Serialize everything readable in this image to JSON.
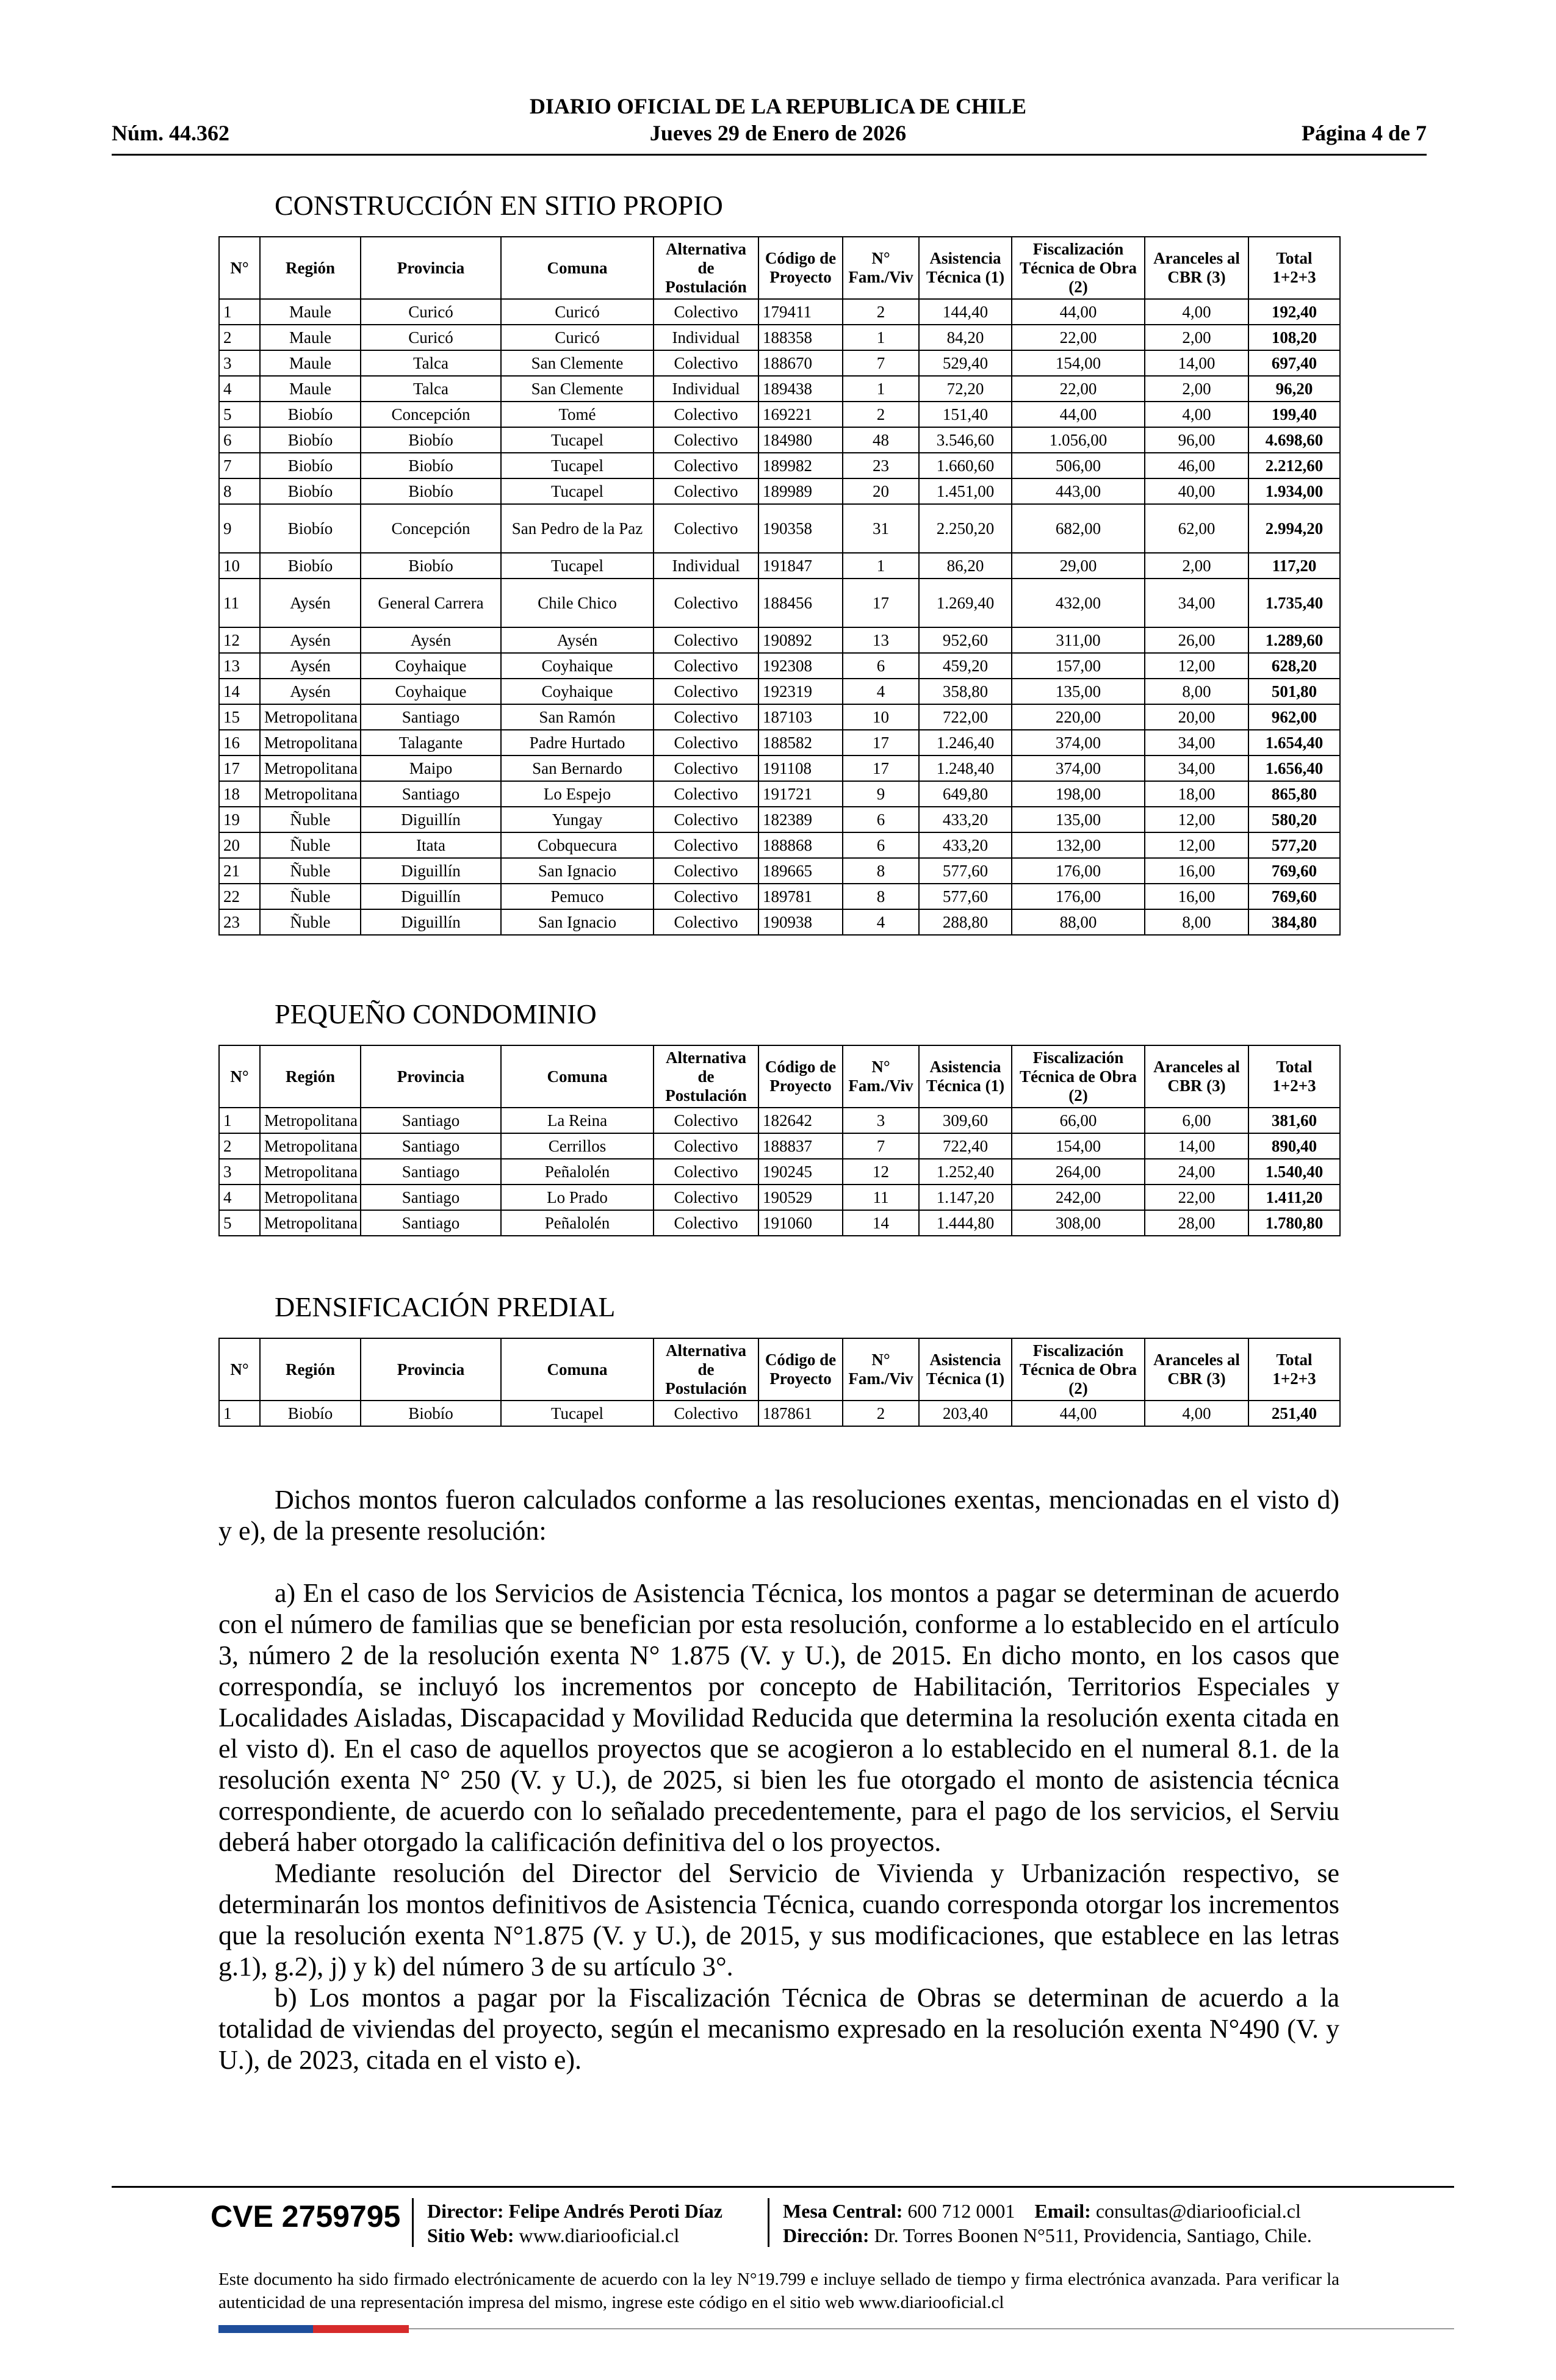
{
  "header": {
    "number": "Núm. 44.362",
    "title": "DIARIO OFICIAL DE LA REPUBLICA DE CHILE",
    "date": "Jueves 29 de Enero de 2026",
    "page": "Página 4 de 7"
  },
  "sections": [
    {
      "title": "CONSTRUCCIÓN EN SITIO PROPIO",
      "columns": [
        "N°",
        "Región",
        "Provincia",
        "Comuna",
        "Alternativa de Postulación",
        "Código de Proyecto",
        "N° Fam./Viv",
        "Asistencia Técnica (1)",
        "Fiscalización Técnica de Obra (2)",
        "Aranceles al CBR (3)",
        "Total 1+2+3"
      ],
      "rows": [
        [
          "1",
          "Maule",
          "Curicó",
          "Curicó",
          "Colectivo",
          "179411",
          "2",
          "144,40",
          "44,00",
          "4,00",
          "192,40"
        ],
        [
          "2",
          "Maule",
          "Curicó",
          "Curicó",
          "Individual",
          "188358",
          "1",
          "84,20",
          "22,00",
          "2,00",
          "108,20"
        ],
        [
          "3",
          "Maule",
          "Talca",
          "San Clemente",
          "Colectivo",
          "188670",
          "7",
          "529,40",
          "154,00",
          "14,00",
          "697,40"
        ],
        [
          "4",
          "Maule",
          "Talca",
          "San Clemente",
          "Individual",
          "189438",
          "1",
          "72,20",
          "22,00",
          "2,00",
          "96,20"
        ],
        [
          "5",
          "Biobío",
          "Concepción",
          "Tomé",
          "Colectivo",
          "169221",
          "2",
          "151,40",
          "44,00",
          "4,00",
          "199,40"
        ],
        [
          "6",
          "Biobío",
          "Biobío",
          "Tucapel",
          "Colectivo",
          "184980",
          "48",
          "3.546,60",
          "1.056,00",
          "96,00",
          "4.698,60"
        ],
        [
          "7",
          "Biobío",
          "Biobío",
          "Tucapel",
          "Colectivo",
          "189982",
          "23",
          "1.660,60",
          "506,00",
          "46,00",
          "2.212,60"
        ],
        [
          "8",
          "Biobío",
          "Biobío",
          "Tucapel",
          "Colectivo",
          "189989",
          "20",
          "1.451,00",
          "443,00",
          "40,00",
          "1.934,00"
        ],
        [
          "9",
          "Biobío",
          "Concepción",
          "San Pedro de la Paz",
          "Colectivo",
          "190358",
          "31",
          "2.250,20",
          "682,00",
          "62,00",
          "2.994,20"
        ],
        [
          "10",
          "Biobío",
          "Biobío",
          "Tucapel",
          "Individual",
          "191847",
          "1",
          "86,20",
          "29,00",
          "2,00",
          "117,20"
        ],
        [
          "11",
          "Aysén",
          "General Carrera",
          "Chile Chico",
          "Colectivo",
          "188456",
          "17",
          "1.269,40",
          "432,00",
          "34,00",
          "1.735,40"
        ],
        [
          "12",
          "Aysén",
          "Aysén",
          "Aysén",
          "Colectivo",
          "190892",
          "13",
          "952,60",
          "311,00",
          "26,00",
          "1.289,60"
        ],
        [
          "13",
          "Aysén",
          "Coyhaique",
          "Coyhaique",
          "Colectivo",
          "192308",
          "6",
          "459,20",
          "157,00",
          "12,00",
          "628,20"
        ],
        [
          "14",
          "Aysén",
          "Coyhaique",
          "Coyhaique",
          "Colectivo",
          "192319",
          "4",
          "358,80",
          "135,00",
          "8,00",
          "501,80"
        ],
        [
          "15",
          "Metropolitana",
          "Santiago",
          "San Ramón",
          "Colectivo",
          "187103",
          "10",
          "722,00",
          "220,00",
          "20,00",
          "962,00"
        ],
        [
          "16",
          "Metropolitana",
          "Talagante",
          "Padre Hurtado",
          "Colectivo",
          "188582",
          "17",
          "1.246,40",
          "374,00",
          "34,00",
          "1.654,40"
        ],
        [
          "17",
          "Metropolitana",
          "Maipo",
          "San Bernardo",
          "Colectivo",
          "191108",
          "17",
          "1.248,40",
          "374,00",
          "34,00",
          "1.656,40"
        ],
        [
          "18",
          "Metropolitana",
          "Santiago",
          "Lo Espejo",
          "Colectivo",
          "191721",
          "9",
          "649,80",
          "198,00",
          "18,00",
          "865,80"
        ],
        [
          "19",
          "Ñuble",
          "Diguillín",
          "Yungay",
          "Colectivo",
          "182389",
          "6",
          "433,20",
          "135,00",
          "12,00",
          "580,20"
        ],
        [
          "20",
          "Ñuble",
          "Itata",
          "Cobquecura",
          "Colectivo",
          "188868",
          "6",
          "433,20",
          "132,00",
          "12,00",
          "577,20"
        ],
        [
          "21",
          "Ñuble",
          "Diguillín",
          "San Ignacio",
          "Colectivo",
          "189665",
          "8",
          "577,60",
          "176,00",
          "16,00",
          "769,60"
        ],
        [
          "22",
          "Ñuble",
          "Diguillín",
          "Pemuco",
          "Colectivo",
          "189781",
          "8",
          "577,60",
          "176,00",
          "16,00",
          "769,60"
        ],
        [
          "23",
          "Ñuble",
          "Diguillín",
          "San Ignacio",
          "Colectivo",
          "190938",
          "4",
          "288,80",
          "88,00",
          "8,00",
          "384,80"
        ]
      ]
    },
    {
      "title": "PEQUEÑO CONDOMINIO",
      "columns": [
        "N°",
        "Región",
        "Provincia",
        "Comuna",
        "Alternativa de Postulación",
        "Código de Proyecto",
        "N° Fam./Viv",
        "Asistencia Técnica (1)",
        "Fiscalización Técnica de Obra (2)",
        "Aranceles al CBR (3)",
        "Total 1+2+3"
      ],
      "rows": [
        [
          "1",
          "Metropolitana",
          "Santiago",
          "La Reina",
          "Colectivo",
          "182642",
          "3",
          "309,60",
          "66,00",
          "6,00",
          "381,60"
        ],
        [
          "2",
          "Metropolitana",
          "Santiago",
          "Cerrillos",
          "Colectivo",
          "188837",
          "7",
          "722,40",
          "154,00",
          "14,00",
          "890,40"
        ],
        [
          "3",
          "Metropolitana",
          "Santiago",
          "Peñalolén",
          "Colectivo",
          "190245",
          "12",
          "1.252,40",
          "264,00",
          "24,00",
          "1.540,40"
        ],
        [
          "4",
          "Metropolitana",
          "Santiago",
          "Lo Prado",
          "Colectivo",
          "190529",
          "11",
          "1.147,20",
          "242,00",
          "22,00",
          "1.411,20"
        ],
        [
          "5",
          "Metropolitana",
          "Santiago",
          "Peñalolén",
          "Colectivo",
          "191060",
          "14",
          "1.444,80",
          "308,00",
          "28,00",
          "1.780,80"
        ]
      ]
    },
    {
      "title": "DENSIFICACIÓN PREDIAL",
      "columns": [
        "N°",
        "Región",
        "Provincia",
        "Comuna",
        "Alternativa de Postulación",
        "Código de Proyecto",
        "N° Fam./Viv",
        "Asistencia Técnica (1)",
        "Fiscalización Técnica de Obra (2)",
        "Aranceles al CBR (3)",
        "Total 1+2+3"
      ],
      "rows": [
        [
          "1",
          "Biobío",
          "Biobío",
          "Tucapel",
          "Colectivo",
          "187861",
          "2",
          "203,40",
          "44,00",
          "4,00",
          "251,40"
        ]
      ]
    }
  ],
  "body": [
    "Dichos montos fueron calculados conforme a las resoluciones exentas, mencionadas en el visto d) y e), de la presente resolución:",
    "a) En el caso de los Servicios de Asistencia Técnica, los montos a pagar se determinan de acuerdo con el número de familias que se benefician por esta resolución, conforme a lo establecido en el artículo 3, número 2 de la resolución exenta N° 1.875 (V. y U.), de 2015. En dicho monto, en los casos que correspondía, se incluyó los incrementos por concepto de Habilitación, Territorios Especiales y Localidades Aisladas, Discapacidad y Movilidad Reducida que determina la resolución exenta citada en el visto d). En el caso de aquellos proyectos que se acogieron a lo establecido en el numeral 8.1. de la resolución exenta N° 250 (V. y U.), de 2025, si bien les fue otorgado el monto de asistencia técnica correspondiente, de acuerdo con lo señalado precedentemente, para el pago de los servicios, el Serviu deberá haber otorgado la calificación definitiva del o los proyectos.",
    "Mediante resolución del Director del Servicio de Vivienda y Urbanización respectivo, se determinarán los montos definitivos de Asistencia Técnica, cuando corresponda otorgar los incrementos que la resolución exenta N°1.875 (V. y U.), de 2015, y sus modificaciones, que establece en las letras g.1), g.2), j) y k) del número 3 de su artículo 3°.",
    "b) Los montos a pagar por la Fiscalización Técnica de Obras se determinan de acuerdo a la totalidad de viviendas del proyecto, según el mecanismo expresado en la resolución exenta N°490 (V. y U.), de 2023, citada en el visto e)."
  ],
  "footer": {
    "cve": "CVE 2759795",
    "director": {
      "label": "Director:",
      "value": "Felipe Andrés Peroti Díaz"
    },
    "site": {
      "label": "Sitio Web:",
      "value": "www.diariooficial.cl"
    },
    "phone": {
      "label": "Mesa Central:",
      "value": "600 712 0001"
    },
    "email": {
      "label": "Email:",
      "value": "consultas@diariooficial.cl"
    },
    "address": {
      "label": "Dirección:",
      "value": "Dr. Torres Boonen N°511, Providencia, Santiago, Chile."
    },
    "note": "Este documento ha sido firmado electrónicamente de acuerdo con la ley N°19.799 e incluye sellado de tiempo y firma electrónica avanzada. Para verificar la autenticidad de una representación impresa del mismo, ingrese este código en el sitio web www.diariooficial.cl"
  }
}
